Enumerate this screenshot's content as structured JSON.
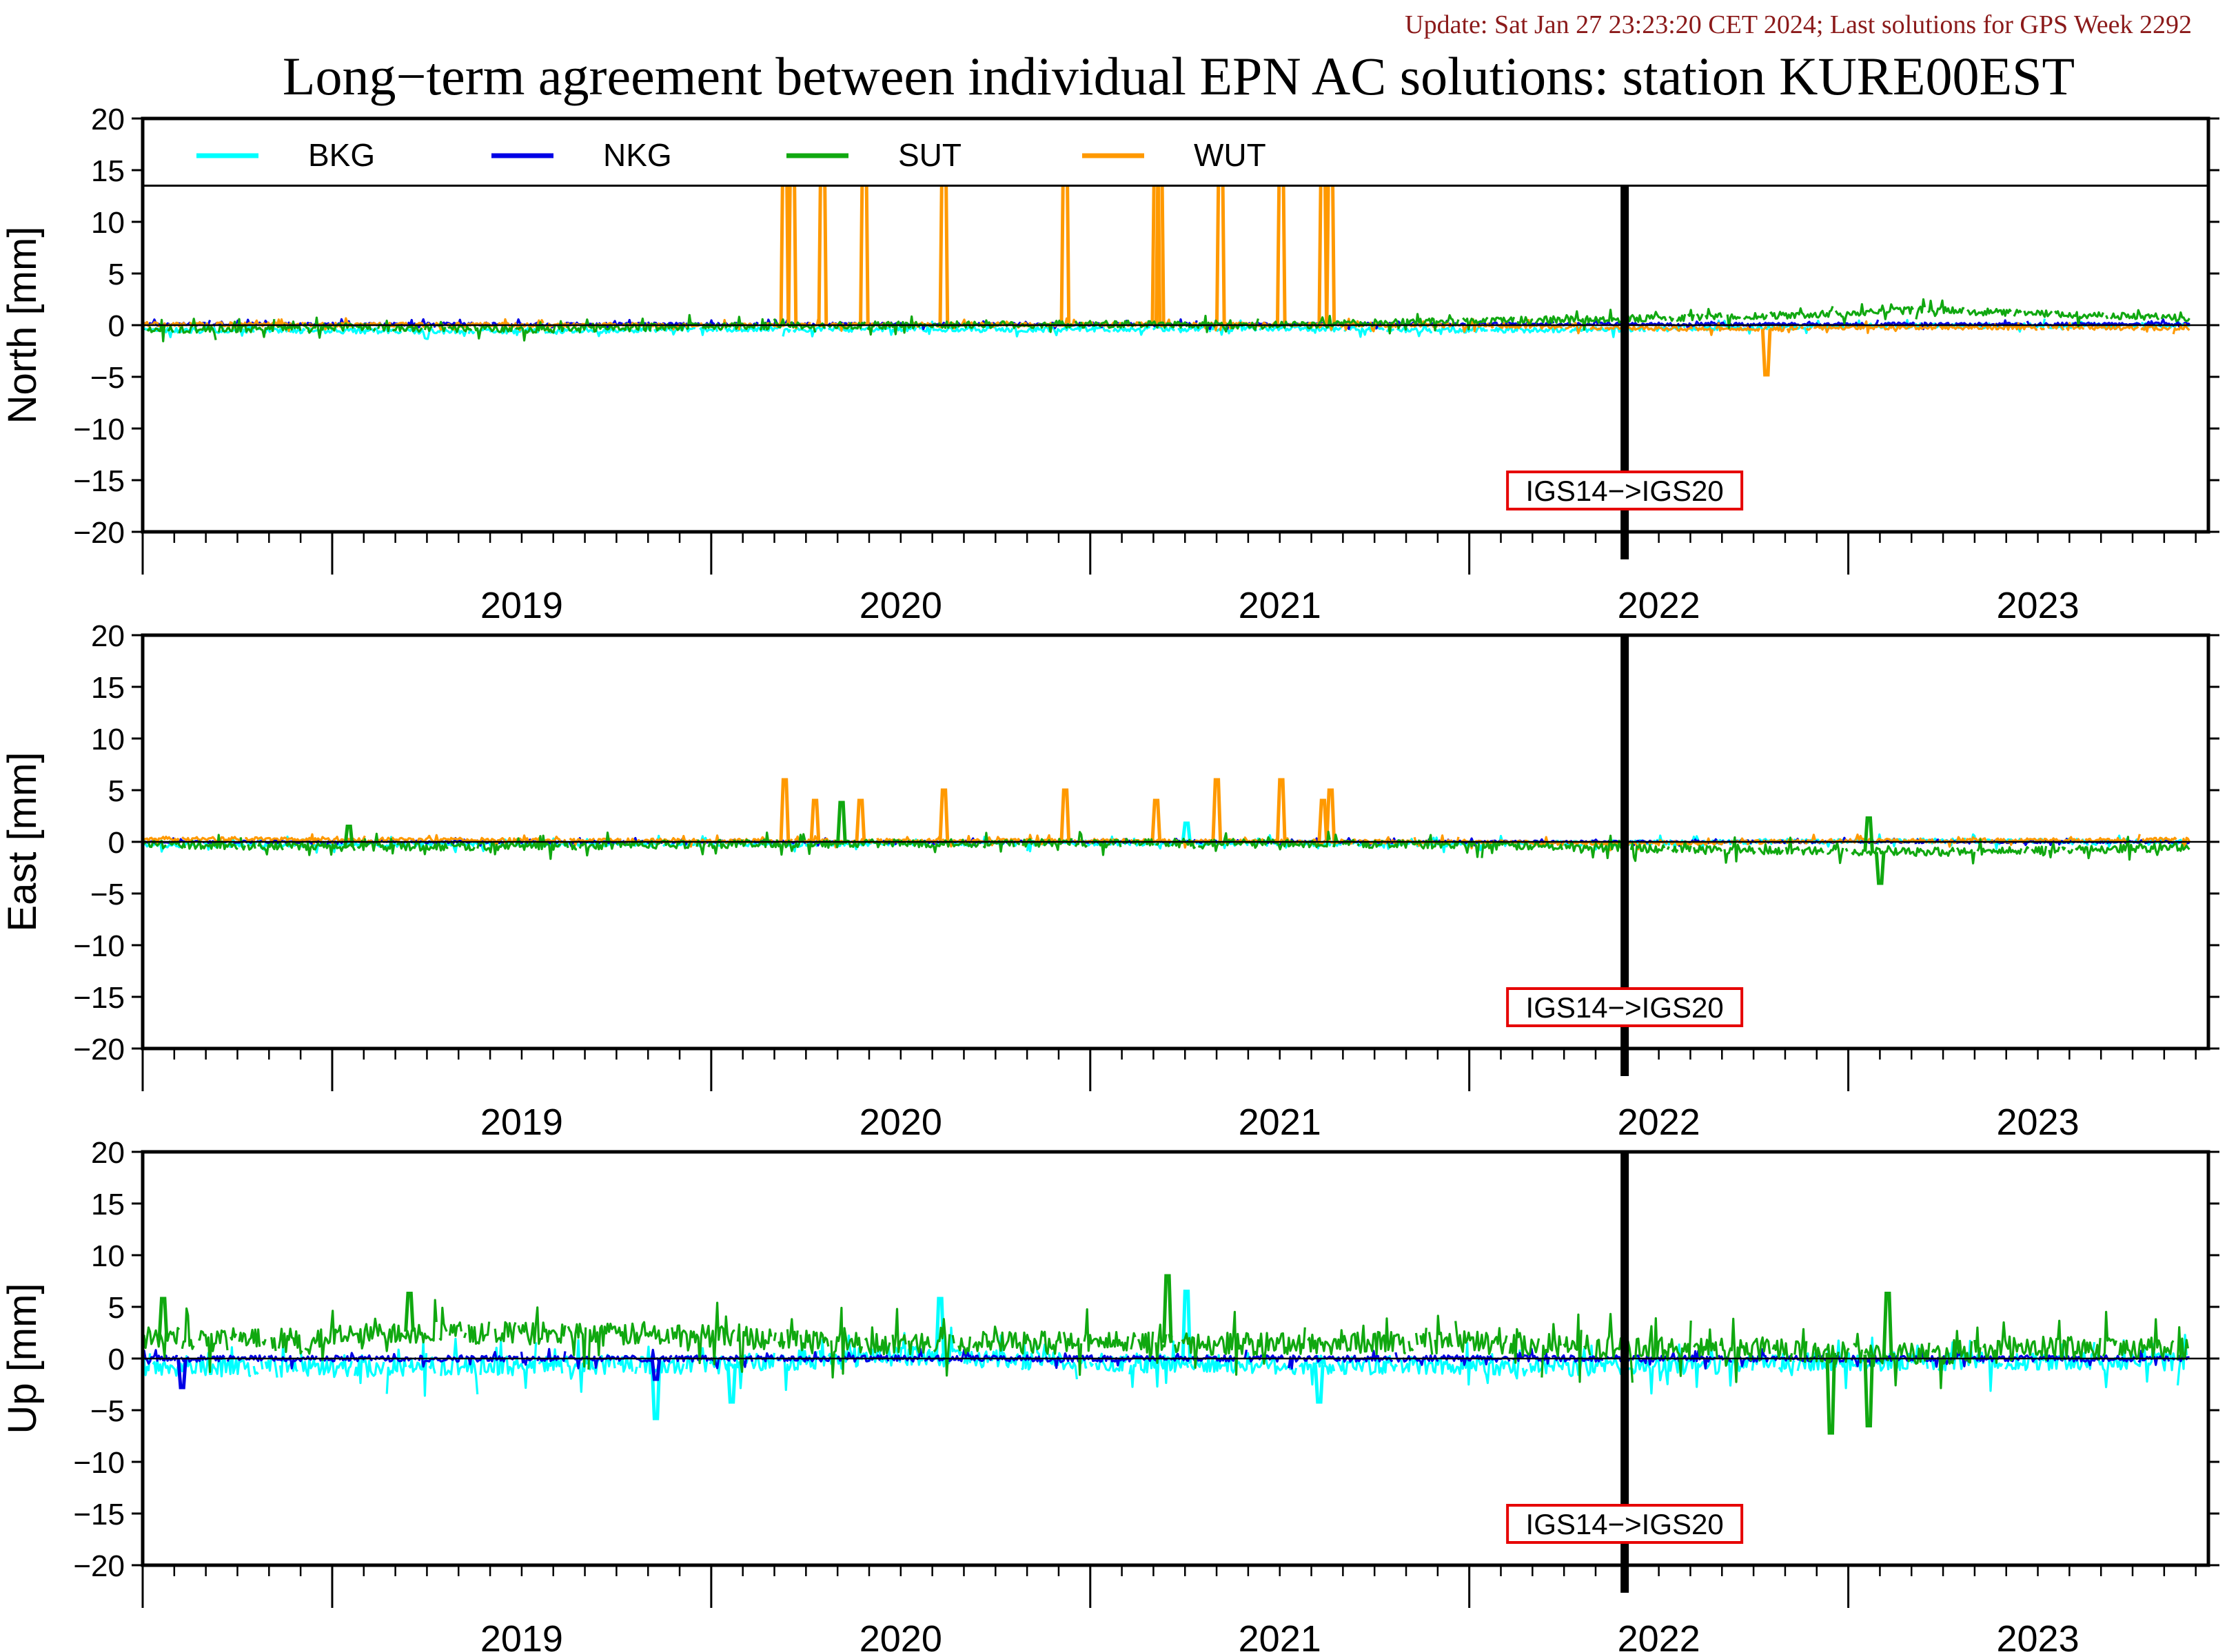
{
  "update_text": "Update: Sat Jan 27 23:23:20 CET 2024; Last solutions for GPS Week 2292",
  "title": "Long−term agreement between individual EPN AC solutions: station KURE00EST",
  "colors": {
    "update": "#8b1a1a",
    "BKG": "#00ffff",
    "NKG": "#0000e6",
    "SUT": "#10a810",
    "WUT": "#ff9900",
    "frame_label": "#e60000"
  },
  "chart_data": [
    {
      "type": "line",
      "ylabel": "North [mm]",
      "ylim": [
        -20,
        20
      ],
      "yticks": [
        "20",
        "15",
        "10",
        "5",
        "0",
        "−5",
        "−10",
        "−15",
        "−20"
      ],
      "xlim": [
        2018.5,
        2023.95
      ],
      "xticks": [
        "2019",
        "2020",
        "2021",
        "2022",
        "2023"
      ],
      "legend": {
        "placement": "top",
        "entries": [
          "BKG",
          "NKG",
          "SUT",
          "WUT"
        ]
      },
      "frame_change": {
        "x": 2022.41,
        "label": "IGS14−>IGS20"
      },
      "series": [
        {
          "name": "BKG",
          "noise": 0.25,
          "offset": -0.5,
          "x": [
            2018.5,
            2019.5,
            2020.0,
            2021.0,
            2021.5,
            2022.0,
            2022.4,
            2023.0,
            2023.9
          ],
          "y": [
            -0.5,
            -0.6,
            -0.4,
            -0.4,
            -0.3,
            -0.5,
            -0.4,
            -0.1,
            0.0
          ]
        },
        {
          "name": "NKG",
          "noise": 0.15,
          "offset": 0.0,
          "x": [
            2018.5,
            2023.9
          ],
          "y": [
            0.1,
            0.1
          ]
        },
        {
          "name": "SUT",
          "noise": 0.35,
          "x": [
            2018.5,
            2019.0,
            2019.5,
            2020.0,
            2020.5,
            2021.0,
            2021.5,
            2022.0,
            2022.4,
            2022.9,
            2023.2,
            2023.5,
            2023.9
          ],
          "y": [
            -0.5,
            -0.2,
            -0.4,
            -0.1,
            0.0,
            0.1,
            0.0,
            0.4,
            0.6,
            1.0,
            1.5,
            1.1,
            0.7
          ]
        },
        {
          "name": "WUT",
          "noise": 0.2,
          "x": [
            2018.5,
            2020.0,
            2021.0,
            2022.0,
            2022.4,
            2022.75,
            2023.0,
            2023.9
          ],
          "y": [
            0.1,
            0.0,
            0.1,
            0.0,
            -0.3,
            -0.4,
            -0.2,
            -0.3
          ],
          "spikes": [
            [
              2020.19,
              20
            ],
            [
              2020.21,
              20
            ],
            [
              2020.29,
              20
            ],
            [
              2020.4,
              20
            ],
            [
              2020.61,
              20
            ],
            [
              2020.93,
              20
            ],
            [
              2021.17,
              20
            ],
            [
              2021.18,
              20
            ],
            [
              2021.34,
              20
            ],
            [
              2021.5,
              20
            ],
            [
              2021.61,
              20
            ],
            [
              2021.63,
              20
            ],
            [
              2022.78,
              -4.8
            ]
          ]
        }
      ]
    },
    {
      "type": "line",
      "ylabel": "East [mm]",
      "ylim": [
        -20,
        20
      ],
      "yticks": [
        "20",
        "15",
        "10",
        "5",
        "0",
        "−5",
        "−10",
        "−15",
        "−20"
      ],
      "xlim": [
        2018.5,
        2023.95
      ],
      "xticks": [
        "2019",
        "2020",
        "2021",
        "2022",
        "2023"
      ],
      "frame_change": {
        "x": 2022.41,
        "label": "IGS14−>IGS20"
      },
      "series": [
        {
          "name": "BKG",
          "noise": 0.25,
          "x": [
            2018.5,
            2019.5,
            2020.0,
            2021.0,
            2022.0,
            2022.4,
            2023.0,
            2023.9
          ],
          "y": [
            -0.3,
            -0.2,
            -0.2,
            -0.1,
            -0.2,
            -0.1,
            0.1,
            0.0
          ],
          "spikes": [
            [
              2021.25,
              1.8
            ]
          ]
        },
        {
          "name": "NKG",
          "noise": 0.12,
          "x": [
            2018.5,
            2023.9
          ],
          "y": [
            0.0,
            0.0
          ]
        },
        {
          "name": "SUT",
          "noise": 0.4,
          "x": [
            2018.5,
            2019.0,
            2019.5,
            2020.0,
            2021.0,
            2021.5,
            2022.0,
            2022.4,
            2022.8,
            2023.1,
            2023.4,
            2023.9
          ],
          "y": [
            -0.2,
            -0.5,
            -0.4,
            -0.2,
            -0.1,
            -0.1,
            -0.3,
            -0.6,
            -0.8,
            -1.0,
            -0.9,
            -0.5
          ],
          "spikes": [
            [
              2019.04,
              1.5
            ],
            [
              2020.34,
              3.8
            ],
            [
              2023.05,
              2.3
            ],
            [
              2023.08,
              -4.0
            ]
          ]
        },
        {
          "name": "WUT",
          "noise": 0.2,
          "x": [
            2018.5,
            2020.0,
            2021.0,
            2022.0,
            2022.4,
            2023.0,
            2023.9
          ],
          "y": [
            0.3,
            0.1,
            0.1,
            0.0,
            -0.2,
            0.1,
            0.2
          ],
          "spikes": [
            [
              2020.19,
              6.0
            ],
            [
              2020.27,
              4.0
            ],
            [
              2020.39,
              4.0
            ],
            [
              2020.61,
              5.0
            ],
            [
              2020.93,
              5.0
            ],
            [
              2021.17,
              4.0
            ],
            [
              2021.33,
              6.0
            ],
            [
              2021.5,
              6.0
            ],
            [
              2021.61,
              4.0
            ],
            [
              2021.63,
              5.0
            ]
          ]
        }
      ]
    },
    {
      "type": "line",
      "ylabel": "Up [mm]",
      "ylim": [
        -20,
        20
      ],
      "yticks": [
        "20",
        "15",
        "10",
        "5",
        "0",
        "−5",
        "−10",
        "−15",
        "−20"
      ],
      "xlim": [
        2018.5,
        2023.95
      ],
      "xticks": [
        "2019",
        "2020",
        "2021",
        "2022",
        "2023"
      ],
      "frame_change": {
        "x": 2022.41,
        "label": "IGS14−>IGS20"
      },
      "series": [
        {
          "name": "BKG",
          "noise": 0.9,
          "x": [
            2018.5,
            2019.0,
            2019.5,
            2020.0,
            2020.5,
            2021.0,
            2021.5,
            2022.0,
            2022.4,
            2023.0,
            2023.9
          ],
          "y": [
            -0.8,
            -0.9,
            -0.7,
            -0.6,
            0.3,
            -0.4,
            -0.6,
            -0.7,
            -0.8,
            -0.3,
            -0.3
          ],
          "spikes": [
            [
              2019.85,
              -5.8
            ],
            [
              2020.05,
              -4.2
            ],
            [
              2020.6,
              5.8
            ],
            [
              2021.25,
              6.5
            ],
            [
              2021.6,
              -4.2
            ]
          ]
        },
        {
          "name": "NKG",
          "noise": 0.3,
          "x": [
            2018.5,
            2023.9
          ],
          "y": [
            0.0,
            0.0
          ],
          "spikes": [
            [
              2018.6,
              -2.8
            ],
            [
              2019.85,
              -2.0
            ]
          ]
        },
        {
          "name": "SUT",
          "noise": 1.1,
          "x": [
            2018.5,
            2018.9,
            2019.2,
            2019.6,
            2020.0,
            2020.5,
            2021.0,
            2021.5,
            2022.0,
            2022.4,
            2022.8,
            2023.1,
            2023.5,
            2023.9
          ],
          "y": [
            2.0,
            1.8,
            2.6,
            2.4,
            2.2,
            1.4,
            1.6,
            1.4,
            1.6,
            1.0,
            0.8,
            0.3,
            1.0,
            1.0
          ],
          "spikes": [
            [
              2018.55,
              5.8
            ],
            [
              2019.2,
              6.3
            ],
            [
              2021.2,
              8.0
            ],
            [
              2022.95,
              -7.2
            ],
            [
              2023.05,
              -6.5
            ],
            [
              2023.1,
              6.3
            ]
          ]
        },
        {
          "name": "WUT",
          "noise": 0.0,
          "x": [],
          "y": []
        }
      ]
    }
  ]
}
